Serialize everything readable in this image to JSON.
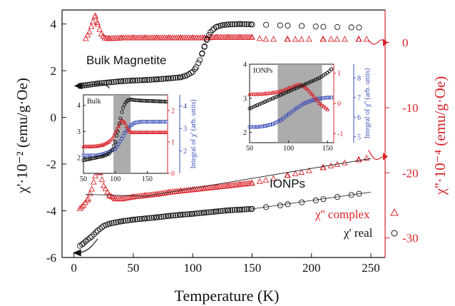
{
  "chart_data": {
    "type": "scatter",
    "xlabel": "Temperature (K)",
    "ylabel_left": "χ'·10⁻² (emu/g·Oe)",
    "ylabel_right": "χ''·10⁻⁴ (emu/g·Oe)",
    "xlim": [
      -10,
      262
    ],
    "ylim_left": [
      -6,
      4.6
    ],
    "ylim_right": [
      -33,
      5
    ],
    "xticks": [
      0,
      50,
      100,
      150,
      200,
      250
    ],
    "yticks_left": [
      -6,
      -4,
      -2,
      0,
      2,
      4
    ],
    "yticks_right": [
      0,
      -10,
      -20,
      -30
    ],
    "legend_position": "bottom-right",
    "annotations": {
      "bulk": "Bulk Magnetite",
      "ionps": "IONPs"
    },
    "series": [
      {
        "name": "χ'' complex",
        "color": "#d9232a",
        "marker": "triangle",
        "axis": "right",
        "group": "bulk",
        "x": [
          10,
          13,
          16,
          18,
          20,
          23,
          26,
          30,
          40,
          50,
          60,
          70,
          80,
          90,
          100,
          110,
          120,
          130,
          140,
          150,
          160,
          170,
          180,
          190,
          200,
          210,
          220,
          230,
          240,
          250
        ],
        "y": [
          0.6,
          1.6,
          3.2,
          4.1,
          2.8,
          1.3,
          0.7,
          0.6,
          0.7,
          0.7,
          0.7,
          0.7,
          0.7,
          0.7,
          0.7,
          0.7,
          0.8,
          0.8,
          0.8,
          0.8,
          0.5,
          0.5,
          0.5,
          0.5,
          0.5,
          0.5,
          0.5,
          0.5,
          0.5,
          0.5
        ]
      },
      {
        "name": "χ' real",
        "color": "#111111",
        "marker": "circle",
        "axis": "left",
        "group": "bulk",
        "x": [
          5,
          10,
          20,
          30,
          40,
          50,
          60,
          70,
          80,
          90,
          95,
          100,
          103,
          106,
          108,
          110,
          112,
          115,
          118,
          120,
          125,
          130,
          140,
          150,
          160,
          170,
          180,
          190,
          200,
          210,
          220,
          230,
          240,
          250
        ],
        "y": [
          1.35,
          1.38,
          1.45,
          1.5,
          1.55,
          1.58,
          1.6,
          1.63,
          1.67,
          1.72,
          1.8,
          1.95,
          2.15,
          2.45,
          2.75,
          3.05,
          3.35,
          3.65,
          3.8,
          3.88,
          3.95,
          3.98,
          4.0,
          3.98,
          3.97,
          3.95,
          3.93,
          3.92,
          3.9,
          3.88,
          3.87,
          3.86,
          3.85,
          3.84
        ]
      },
      {
        "name": "χ'' complex",
        "color": "#d9232a",
        "marker": "triangle",
        "axis": "right",
        "group": "ionps",
        "x": [
          5,
          8,
          12,
          15,
          18,
          20,
          22,
          25,
          30,
          35,
          40,
          50,
          60,
          70,
          80,
          90,
          100,
          110,
          120,
          130,
          140,
          150,
          160,
          170,
          180,
          190,
          200,
          210,
          220,
          230,
          240,
          250
        ],
        "y": [
          -25.5,
          -25,
          -24,
          -22.5,
          -20.5,
          -19.5,
          -20,
          -22,
          -23.5,
          -24,
          -24,
          -23.7,
          -23.5,
          -23.3,
          -23,
          -22.8,
          -22.6,
          -22.4,
          -22.2,
          -22,
          -21.8,
          -21.6,
          -21.2,
          -20.8,
          -20.4,
          -20,
          -19.6,
          -19.2,
          -18.8,
          -18.4,
          -18,
          -17.6
        ]
      },
      {
        "name": "χ' real",
        "color": "#111111",
        "marker": "circle",
        "axis": "left",
        "group": "ionps",
        "x": [
          5,
          8,
          10,
          15,
          20,
          25,
          30,
          40,
          50,
          60,
          70,
          80,
          90,
          100,
          110,
          120,
          130,
          140,
          150,
          160,
          170,
          180,
          190,
          200,
          210,
          220,
          230,
          240,
          250
        ],
        "y": [
          -5.5,
          -5.4,
          -5.3,
          -5.1,
          -4.85,
          -4.65,
          -4.55,
          -4.45,
          -4.38,
          -4.33,
          -4.28,
          -4.22,
          -4.17,
          -4.13,
          -4.08,
          -4.03,
          -3.98,
          -3.95,
          -3.92,
          -3.85,
          -3.8,
          -3.72,
          -3.65,
          -3.58,
          -3.5,
          -3.42,
          -3.35,
          -3.27,
          -3.18
        ]
      }
    ],
    "insets": [
      {
        "name": "bulk",
        "title": "Bulk",
        "xlim": [
          50,
          182
        ],
        "xticks": [
          50,
          100,
          150
        ],
        "ylim_left": [
          1.4,
          4.4
        ],
        "yticks_left": [
          2,
          3,
          4
        ],
        "ylim_right": [
          0,
          2.5
        ],
        "yticks_right_red": [
          0,
          1,
          2
        ],
        "ylim_blue": [
          1,
          4.5
        ],
        "yticks_blue": [
          2,
          3,
          4
        ],
        "ylabel_blue": "Integral of χ' (arb. units)",
        "shade": [
          97,
          124
        ],
        "real": {
          "x": [
            50,
            60,
            70,
            80,
            90,
            95,
            100,
            104,
            108,
            112,
            116,
            120,
            125,
            130,
            140,
            150,
            160,
            170,
            180
          ],
          "y": [
            1.9,
            1.95,
            2.0,
            2.05,
            2.15,
            2.3,
            2.6,
            3.0,
            3.5,
            3.9,
            4.1,
            4.2,
            4.22,
            4.2,
            4.18,
            4.17,
            4.16,
            4.15,
            4.14
          ]
        },
        "imag": {
          "x": [
            50,
            60,
            70,
            80,
            90,
            95,
            100,
            105,
            110,
            115,
            120,
            125,
            130,
            140,
            150,
            160,
            170,
            180
          ],
          "y": [
            0.85,
            0.85,
            0.86,
            0.9,
            1.0,
            1.1,
            1.3,
            1.5,
            1.7,
            1.6,
            1.4,
            1.3,
            1.3,
            1.3,
            1.3,
            1.3,
            1.3,
            1.3
          ]
        },
        "blue": {
          "x": [
            50,
            60,
            70,
            80,
            90,
            100,
            105,
            110,
            115,
            120,
            125,
            130,
            140,
            150,
            160,
            170,
            180
          ],
          "y": [
            1.8,
            1.8,
            1.8,
            1.85,
            1.95,
            2.1,
            2.3,
            2.55,
            2.8,
            3.0,
            3.15,
            3.25,
            3.3,
            3.3,
            3.3,
            3.3,
            3.3
          ]
        }
      },
      {
        "name": "ionps",
        "title": "IONPs",
        "xlim": [
          50,
          158
        ],
        "xticks": [
          50,
          100,
          150
        ],
        "ylim_left": [
          1.7,
          4.0
        ],
        "yticks_left": [
          2,
          3,
          4
        ],
        "ylim_right": [
          -1.3,
          1.3
        ],
        "yticks_right_red": [
          -1,
          0,
          1
        ],
        "ylim_blue": [
          4.7,
          8.7
        ],
        "yticks_blue": [
          5,
          6,
          7,
          8
        ],
        "ylabel_blue": "Integral of χ'' (arb. units)",
        "shade": [
          86,
          143
        ],
        "real": {
          "x": [
            50,
            60,
            70,
            80,
            90,
            100,
            110,
            120,
            130,
            140,
            150,
            155
          ],
          "y": [
            2.7,
            2.8,
            2.9,
            3.0,
            3.1,
            3.2,
            3.3,
            3.4,
            3.5,
            3.6,
            3.75,
            3.85
          ]
        },
        "imag": {
          "x": [
            50,
            60,
            70,
            80,
            90,
            100,
            110,
            115,
            120,
            125,
            130,
            135,
            140,
            145,
            150
          ],
          "y": [
            0.3,
            0.3,
            0.32,
            0.35,
            0.4,
            0.5,
            0.6,
            0.62,
            0.55,
            0.45,
            0.3,
            0.15,
            0.0,
            -0.1,
            -0.2
          ]
        },
        "blue": {
          "x": [
            50,
            60,
            70,
            80,
            90,
            100,
            110,
            120,
            130,
            140,
            150,
            155
          ],
          "y": [
            5.5,
            5.5,
            5.55,
            5.65,
            5.85,
            6.15,
            6.45,
            6.7,
            6.85,
            6.95,
            7.0,
            7.0
          ]
        }
      }
    ]
  }
}
